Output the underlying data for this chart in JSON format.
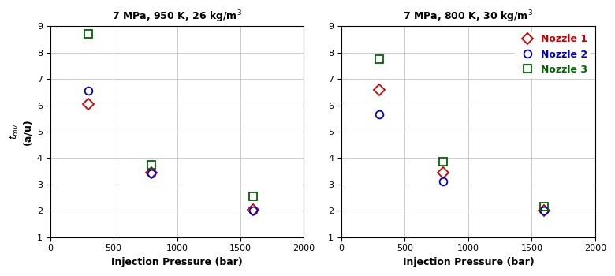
{
  "plot1": {
    "title": "7 MPa, 950 K, 26 kg/m$^3$",
    "nozzle1": {
      "x": [
        300,
        800,
        1600
      ],
      "y": [
        6.05,
        3.45,
        2.05
      ]
    },
    "nozzle2": {
      "x": [
        300,
        800,
        1600
      ],
      "y": [
        6.55,
        3.4,
        2.0
      ]
    },
    "nozzle3": {
      "x": [
        300,
        800,
        1600
      ],
      "y": [
        8.7,
        3.75,
        2.55
      ]
    }
  },
  "plot2": {
    "title": "7 MPa, 800 K, 30 kg/m$^3$",
    "nozzle1": {
      "x": [
        300,
        800,
        1600
      ],
      "y": [
        6.6,
        3.45,
        2.0
      ]
    },
    "nozzle2": {
      "x": [
        300,
        800,
        1600
      ],
      "y": [
        5.65,
        3.1,
        2.0
      ]
    },
    "nozzle3": {
      "x": [
        300,
        800,
        1600
      ],
      "y": [
        7.75,
        3.85,
        2.15
      ]
    }
  },
  "xlabel": "Injection Pressure (bar)",
  "ylabel_line1": "t",
  "ylabel_mv": "mv",
  "ylabel_line2": "(a/u)",
  "xlim": [
    0,
    2000
  ],
  "ylim": [
    1,
    9
  ],
  "xticks": [
    0,
    500,
    1000,
    1500,
    2000
  ],
  "yticks": [
    1,
    2,
    3,
    4,
    5,
    6,
    7,
    8,
    9
  ],
  "nozzle1_color": "#cc0000",
  "nozzle2_color": "#0000cc",
  "nozzle3_color": "#006600",
  "bg_color": "#ffffff",
  "grid_color": "#cccccc",
  "legend_labels": [
    "Nozzle 1",
    "Nozzle 2",
    "Nozzle 3"
  ],
  "marker_size": 7,
  "title_fontsize": 9,
  "label_fontsize": 9,
  "tick_fontsize": 8,
  "legend_fontsize": 9
}
